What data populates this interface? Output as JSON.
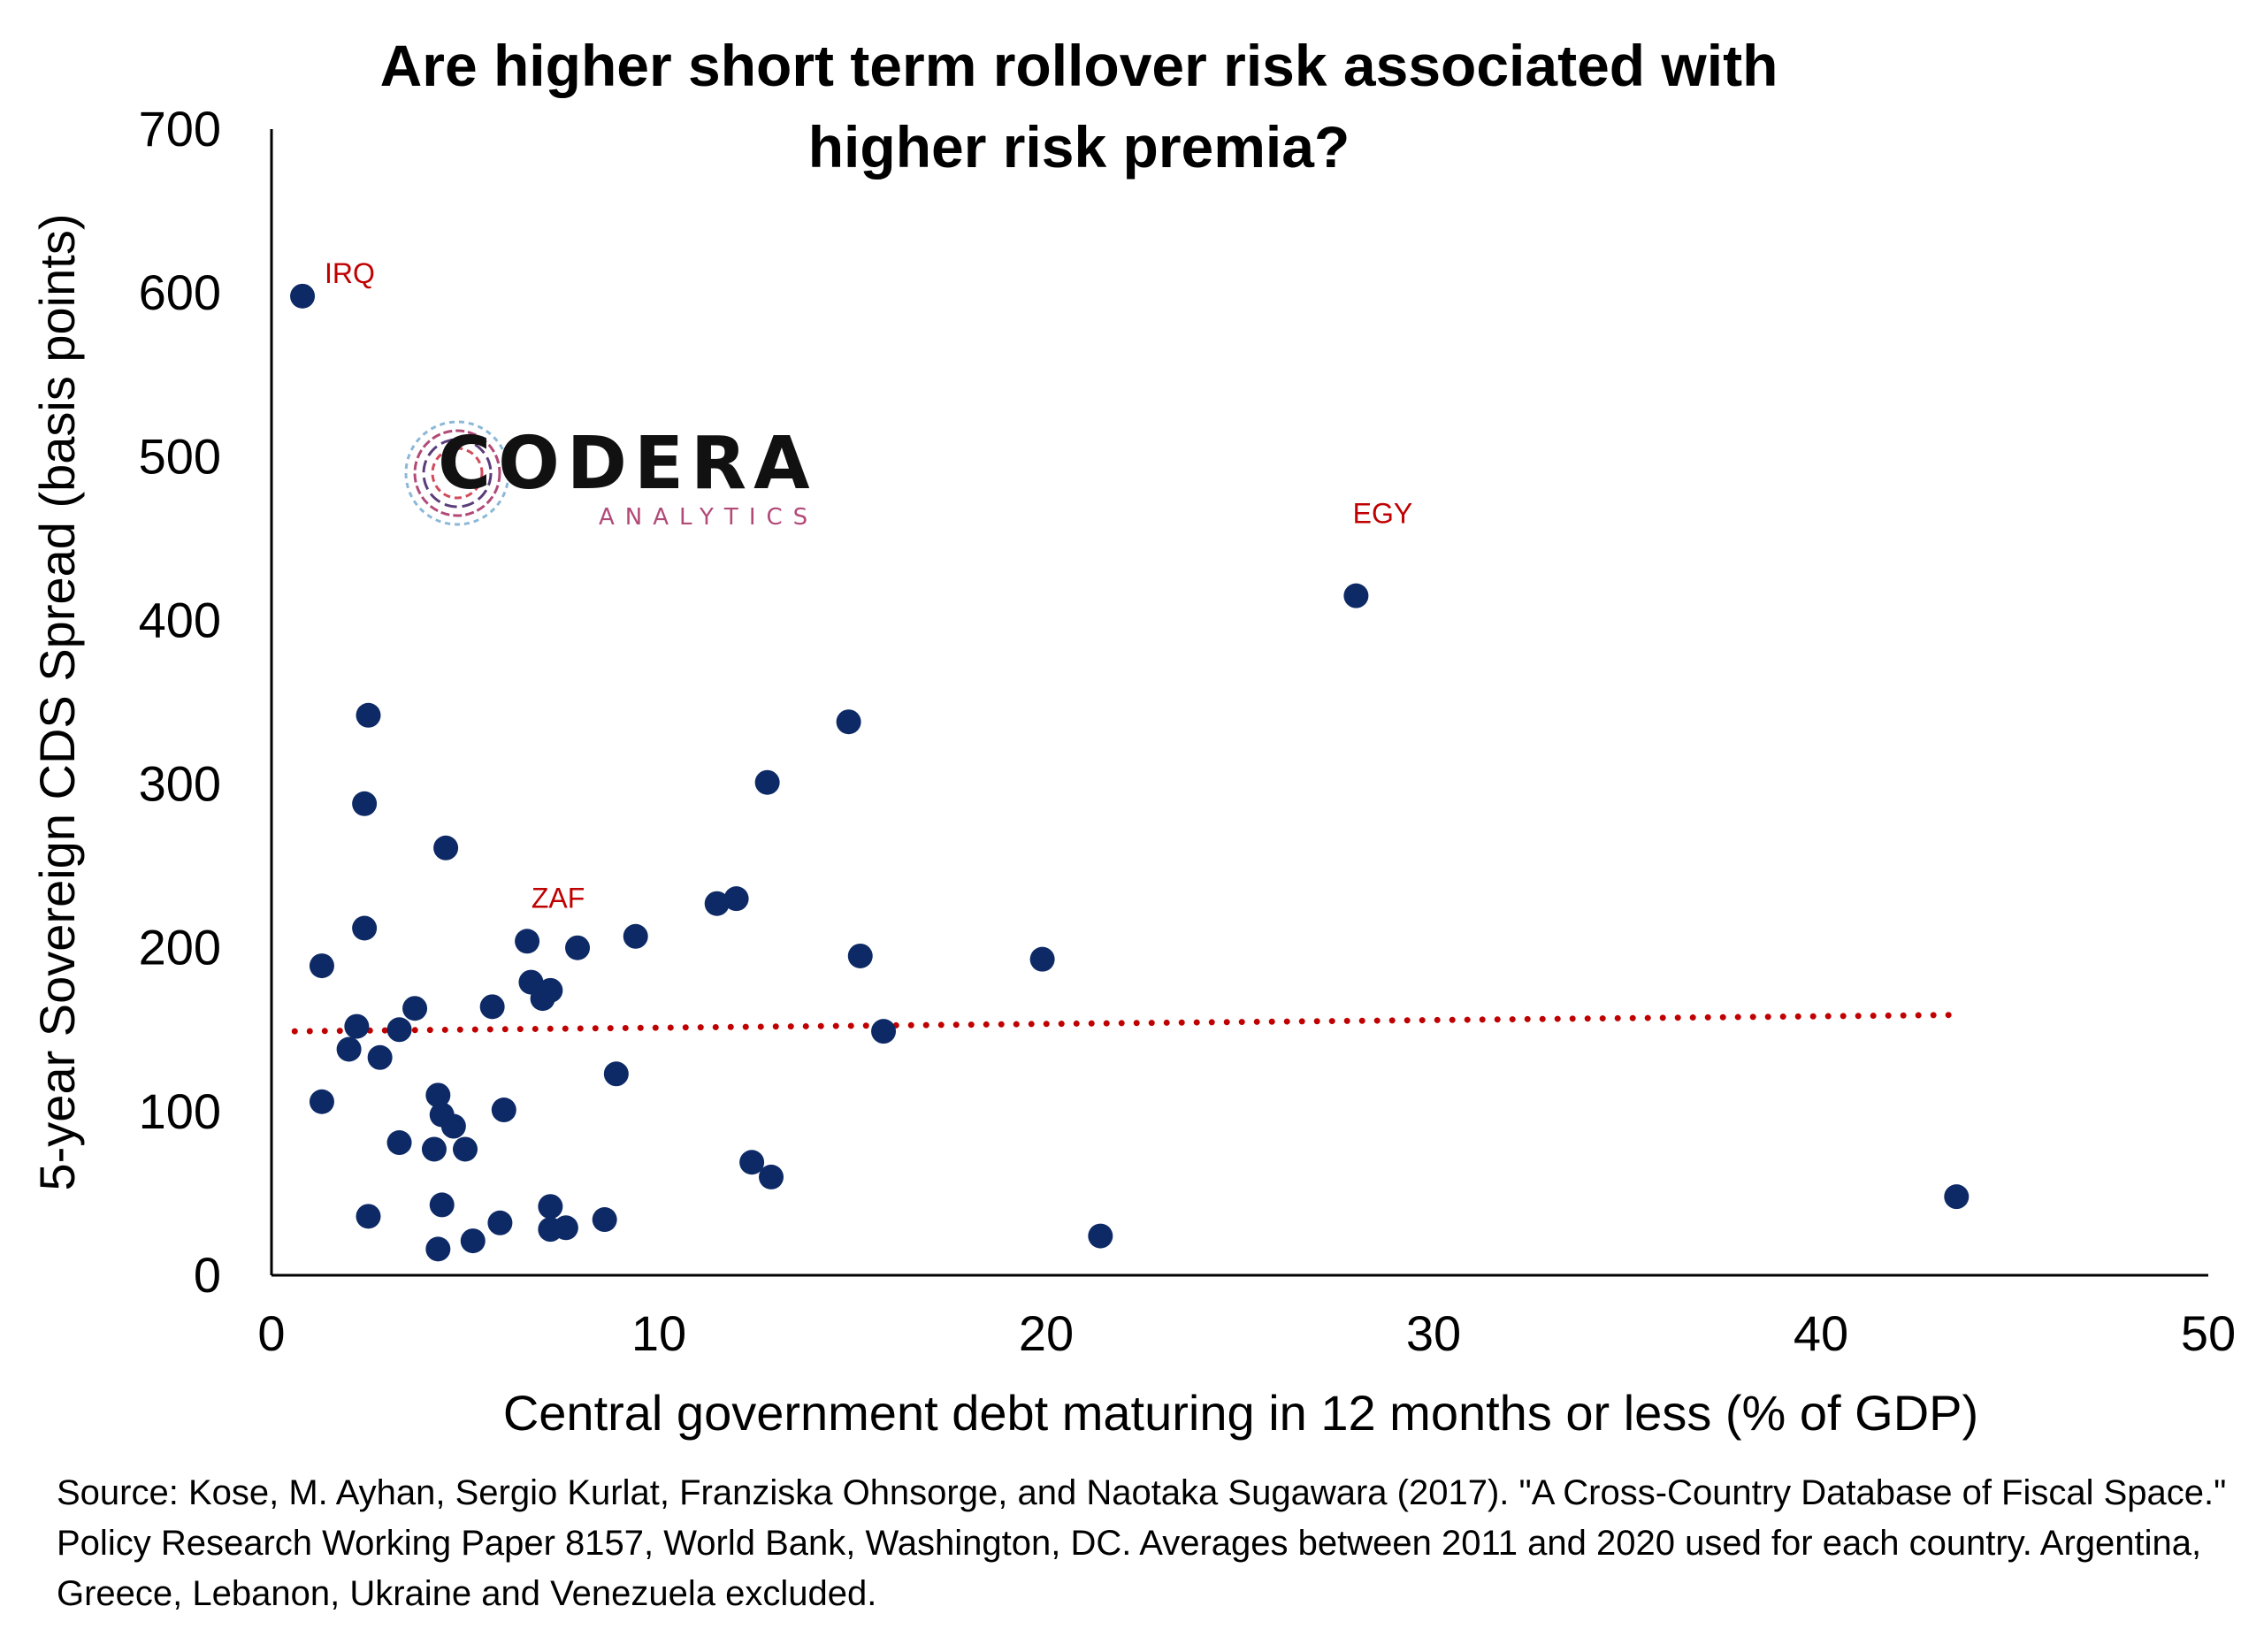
{
  "chart_data": {
    "type": "scatter",
    "title": "Are higher short term rollover risk associated with higher risk premia?",
    "xlabel": "Central government debt maturing in 12 months or less (% of GDP)",
    "ylabel": "5-year Sovereign CDS Spread (basis points)",
    "xlim": [
      0,
      50
    ],
    "ylim": [
      0,
      700
    ],
    "x_ticks": [
      "0",
      "10",
      "20",
      "30",
      "40",
      "50"
    ],
    "y_ticks": [
      "0",
      "100",
      "200",
      "300",
      "400",
      "500",
      "600",
      "700"
    ],
    "grid": false,
    "legend": "none",
    "point_color": "#0e2a66",
    "trend_color": "#c00000",
    "points": [
      {
        "x": 0.8,
        "y": 598
      },
      {
        "x": 28.0,
        "y": 415
      },
      {
        "x": 2.5,
        "y": 342
      },
      {
        "x": 14.9,
        "y": 338
      },
      {
        "x": 12.8,
        "y": 301
      },
      {
        "x": 2.4,
        "y": 288
      },
      {
        "x": 4.5,
        "y": 261
      },
      {
        "x": 12.0,
        "y": 230
      },
      {
        "x": 11.5,
        "y": 227
      },
      {
        "x": 2.4,
        "y": 212
      },
      {
        "x": 9.4,
        "y": 207
      },
      {
        "x": 6.6,
        "y": 204
      },
      {
        "x": 7.9,
        "y": 200
      },
      {
        "x": 15.2,
        "y": 195
      },
      {
        "x": 19.9,
        "y": 193
      },
      {
        "x": 1.3,
        "y": 189
      },
      {
        "x": 6.7,
        "y": 179
      },
      {
        "x": 7.2,
        "y": 174
      },
      {
        "x": 7.0,
        "y": 169
      },
      {
        "x": 3.7,
        "y": 163
      },
      {
        "x": 5.7,
        "y": 164
      },
      {
        "x": 2.2,
        "y": 152
      },
      {
        "x": 3.3,
        "y": 150
      },
      {
        "x": 15.8,
        "y": 149
      },
      {
        "x": 2.0,
        "y": 138
      },
      {
        "x": 2.8,
        "y": 133
      },
      {
        "x": 8.9,
        "y": 123
      },
      {
        "x": 4.3,
        "y": 110
      },
      {
        "x": 1.3,
        "y": 106
      },
      {
        "x": 6.0,
        "y": 101
      },
      {
        "x": 4.4,
        "y": 98
      },
      {
        "x": 4.7,
        "y": 91
      },
      {
        "x": 3.3,
        "y": 81
      },
      {
        "x": 4.2,
        "y": 77
      },
      {
        "x": 5.0,
        "y": 77
      },
      {
        "x": 12.4,
        "y": 69
      },
      {
        "x": 12.9,
        "y": 60
      },
      {
        "x": 43.5,
        "y": 48
      },
      {
        "x": 4.4,
        "y": 43
      },
      {
        "x": 7.2,
        "y": 42
      },
      {
        "x": 2.5,
        "y": 36
      },
      {
        "x": 8.6,
        "y": 34
      },
      {
        "x": 5.9,
        "y": 32
      },
      {
        "x": 7.2,
        "y": 28
      },
      {
        "x": 7.6,
        "y": 29
      },
      {
        "x": 21.4,
        "y": 24
      },
      {
        "x": 5.2,
        "y": 21
      },
      {
        "x": 4.3,
        "y": 16
      }
    ],
    "annotations": [
      {
        "text": "IRQ",
        "x": 0.8,
        "y": 598
      },
      {
        "text": "EGY",
        "x": 28.0,
        "y": 415
      },
      {
        "text": "ZAF",
        "x": 6.6,
        "y": 204
      }
    ],
    "trendline": {
      "style": "dotted",
      "x": [
        0.6,
        43.5
      ],
      "y": [
        149,
        159
      ]
    }
  },
  "logo": {
    "name": "CODERA",
    "tagline": "ANALYTICS"
  },
  "source_note": "Source: Kose, M. Ayhan, Sergio Kurlat, Franziska Ohnsorge, and Naotaka Sugawara (2017). \"A Cross-Country Database of Fiscal Space.\" Policy Research Working Paper 8157, World Bank, Washington, DC. Averages between 2011 and 2020 used for each country. Argentina, Greece, Lebanon, Ukraine and Venezuela excluded."
}
